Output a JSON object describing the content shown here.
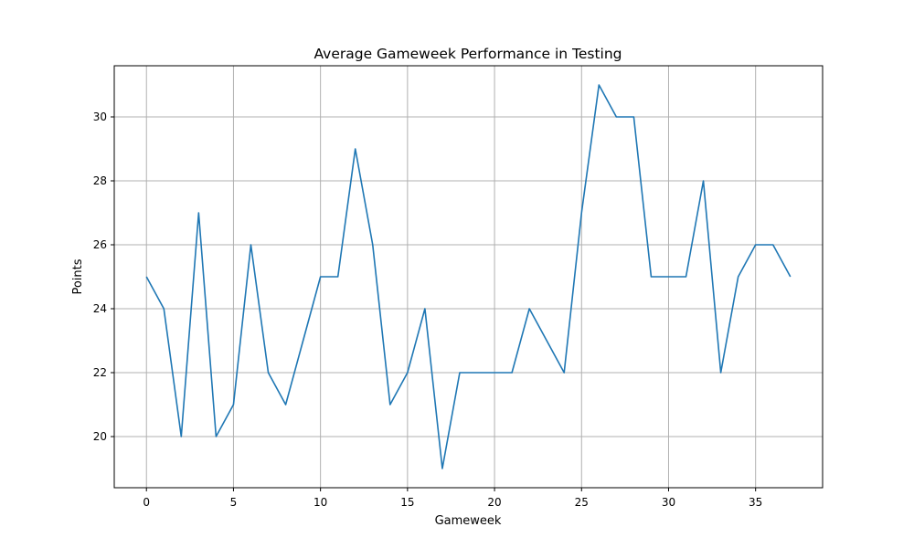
{
  "chart_data": {
    "type": "line",
    "title": "Average Gameweek Performance in Testing",
    "xlabel": "Gameweek",
    "ylabel": "Points",
    "xlim": [
      -1.85,
      38.85
    ],
    "ylim": [
      18.4,
      31.6
    ],
    "xticks": [
      0,
      5,
      10,
      15,
      20,
      25,
      30,
      35
    ],
    "yticks": [
      20,
      22,
      24,
      26,
      28,
      30
    ],
    "grid": true,
    "series": [
      {
        "color": "#1f77b4",
        "x": [
          0,
          1,
          2,
          3,
          4,
          5,
          6,
          7,
          8,
          9,
          10,
          11,
          12,
          13,
          14,
          15,
          16,
          17,
          18,
          19,
          20,
          21,
          22,
          23,
          24,
          25,
          26,
          27,
          28,
          29,
          30,
          31,
          32,
          33,
          34,
          35,
          36,
          37
        ],
        "y": [
          25,
          24,
          20,
          27,
          20,
          21,
          26,
          22,
          21,
          23,
          25,
          25,
          29,
          26,
          21,
          22,
          24,
          19,
          22,
          22,
          22,
          22,
          24,
          23,
          22,
          27,
          31,
          30,
          30,
          25,
          25,
          25,
          28,
          22,
          25,
          26,
          26,
          25
        ]
      }
    ]
  }
}
